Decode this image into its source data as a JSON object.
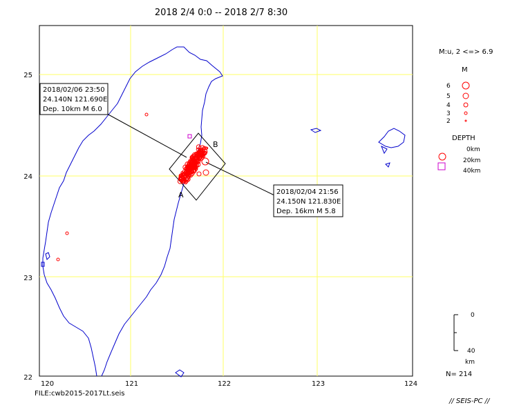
{
  "title": "2018 2/4 0:0 -- 2018 2/7 8:30",
  "file_label": "FILE:cwb2015-2017Lt.seis",
  "credit": "// SEIS-PC //",
  "map": {
    "lon_range": [
      120,
      124
    ],
    "lat_range": [
      22,
      25.5
    ],
    "lon_ticks": [
      "120",
      "121",
      "122",
      "123",
      "124"
    ],
    "lat_ticks": [
      "22",
      "23",
      "24",
      "25"
    ],
    "grid_color": "#ffff66",
    "coast_color": "#0000cc"
  },
  "section": {
    "label_a": "A",
    "label_b": "B"
  },
  "callouts": [
    {
      "lines": [
        "2018/02/06 23:50",
        "24.140N   121.690E",
        "Dep. 10km    M 6.0"
      ]
    },
    {
      "lines": [
        "2018/02/04 21:56",
        "24.150N   121.830E",
        "Dep. 16km    M 5.8"
      ]
    }
  ],
  "legend": {
    "magnitude_header": "M:u, 2 <=> 6.9",
    "m_title": "M",
    "m_labels": [
      "6",
      "5",
      "4",
      "3",
      "2"
    ],
    "depth_title": "DEPTH",
    "depth_labels": [
      "0km",
      "20km",
      "40km"
    ],
    "scale_top": "0",
    "scale_bottom": "40",
    "scale_unit": "km",
    "count": "N= 214"
  },
  "colors": {
    "shallow": "#ff0000",
    "deep": "#cc00cc"
  }
}
